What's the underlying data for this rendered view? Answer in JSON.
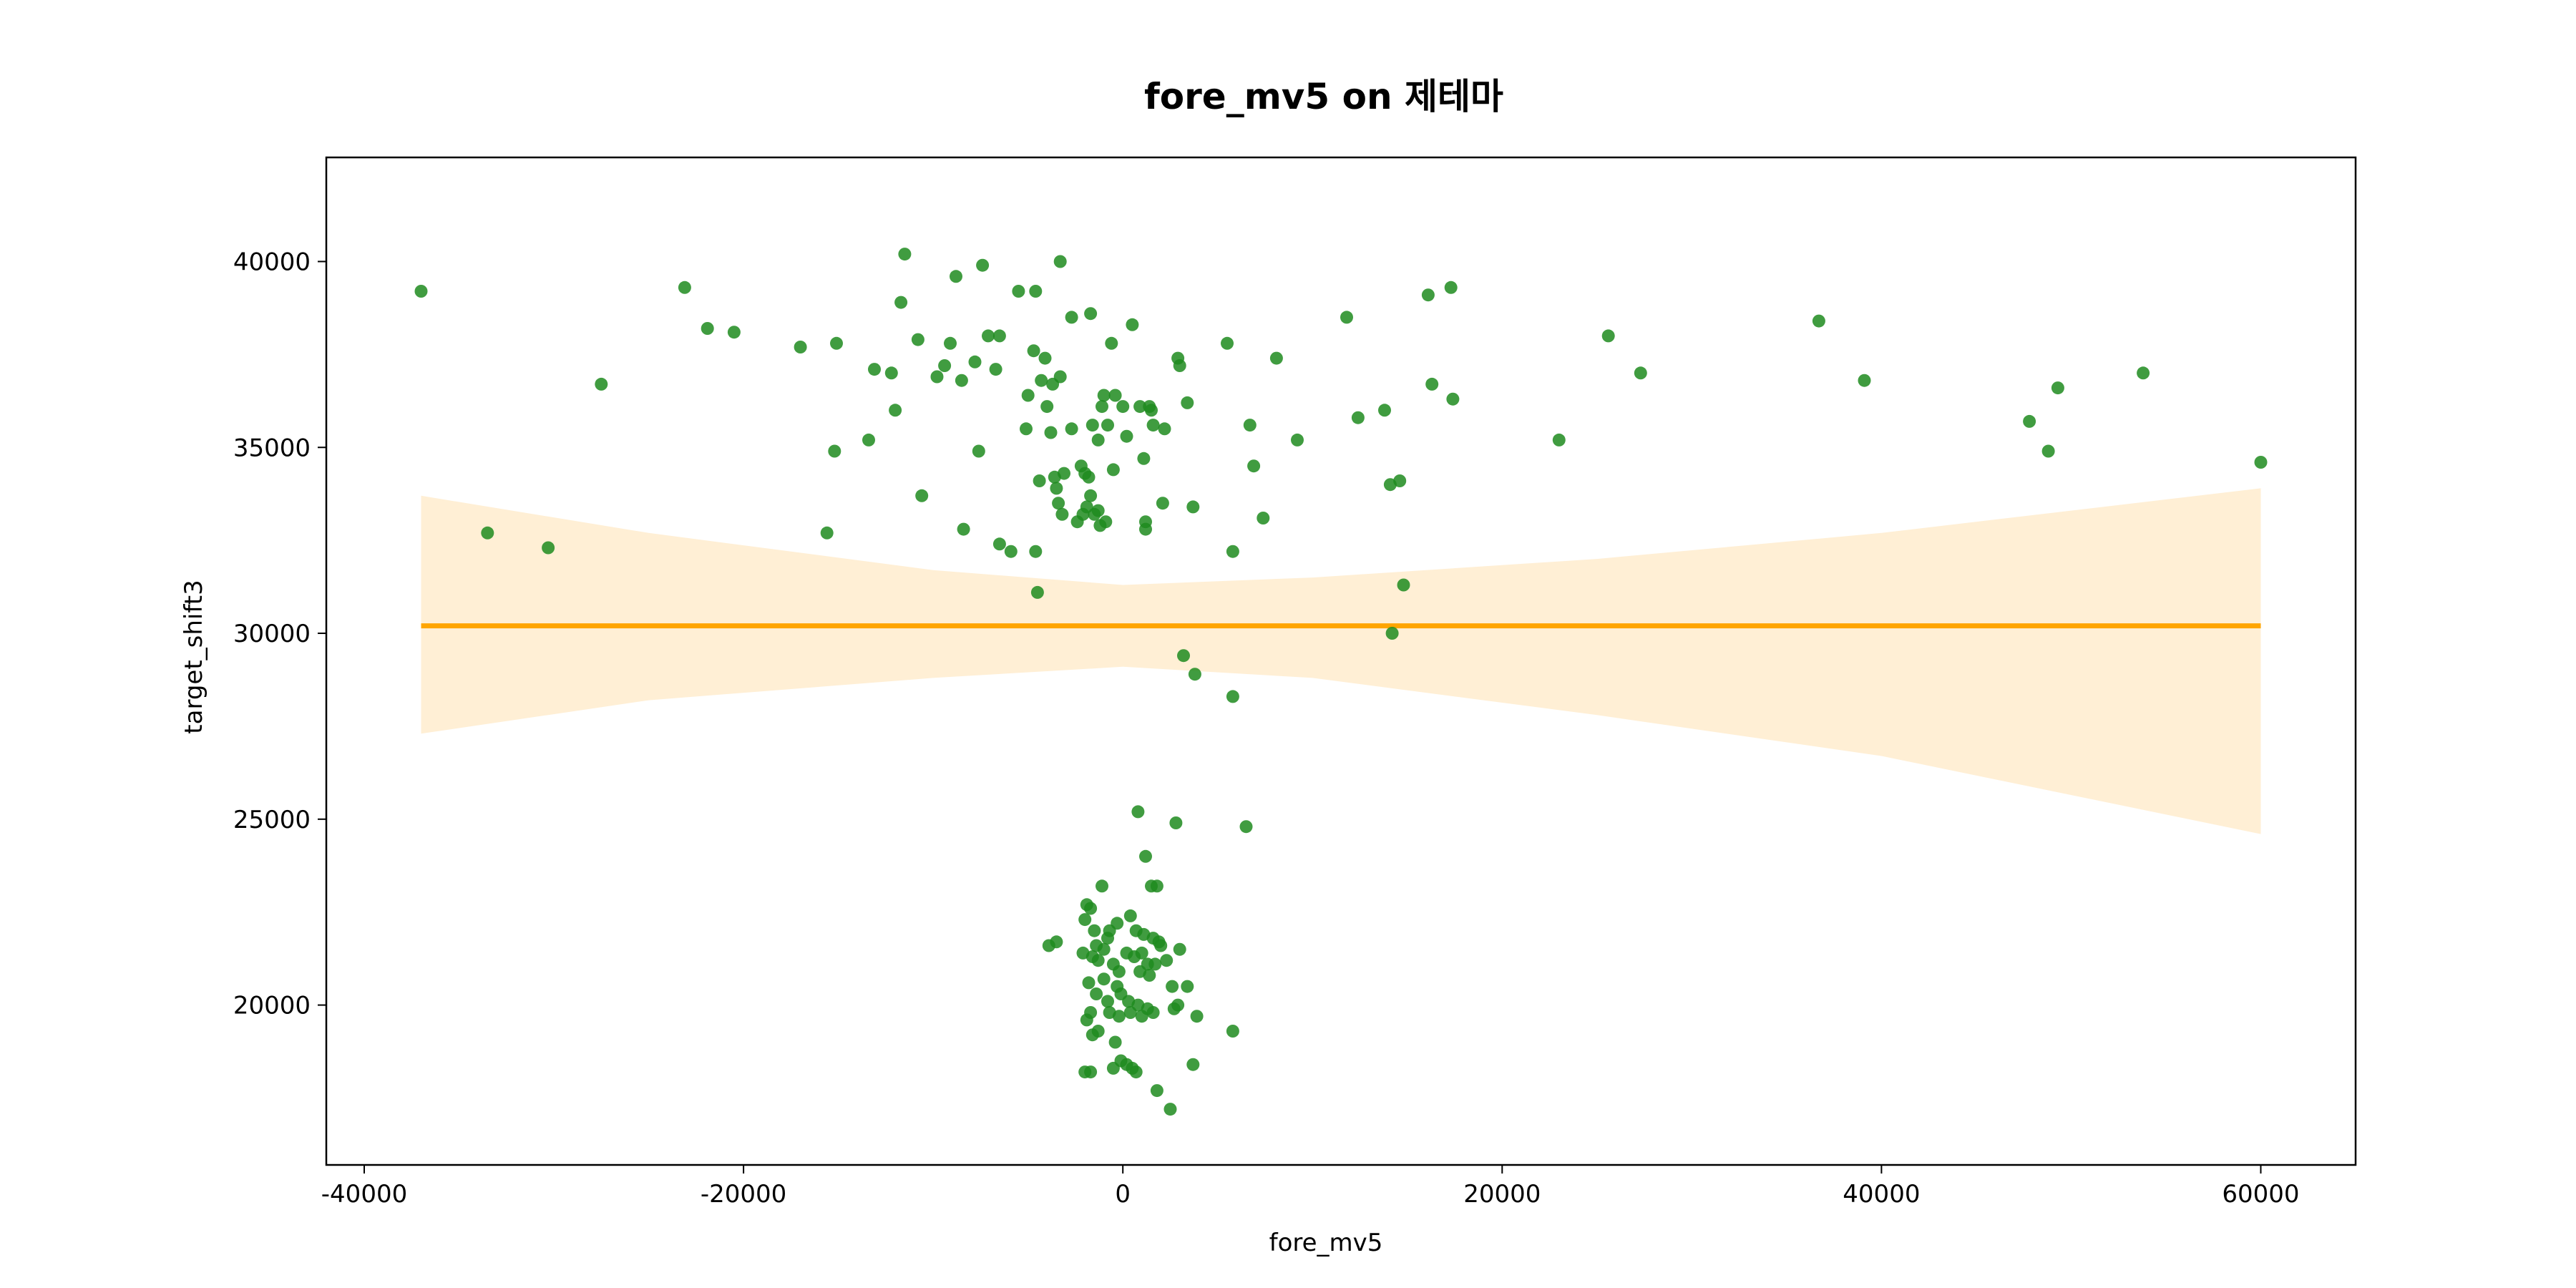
{
  "chart_data": {
    "type": "scatter",
    "title": "fore_mv5 on 제테마",
    "xlabel": "fore_mv5",
    "ylabel": "target_shift3",
    "xlim": [
      -42000,
      65000
    ],
    "ylim": [
      15700,
      42800
    ],
    "x_ticks": [
      -40000,
      -20000,
      0,
      20000,
      40000,
      60000
    ],
    "x_tick_labels": [
      "-40000",
      "-20000",
      "0",
      "20000",
      "40000",
      "60000"
    ],
    "y_ticks": [
      20000,
      25000,
      30000,
      35000,
      40000
    ],
    "y_tick_labels": [
      "20000",
      "25000",
      "30000",
      "35000",
      "40000"
    ],
    "grid": false,
    "colors": {
      "points": "#1f8b1f",
      "regression_line": "#ffa500",
      "confidence_band": "#ffe9c7"
    },
    "regression": {
      "x": [
        -37000,
        -25000,
        -10000,
        0,
        10000,
        25000,
        40000,
        60000
      ],
      "y": [
        30200,
        30200,
        30200,
        30200,
        30200,
        30200,
        30200,
        30200
      ],
      "ci_upper": [
        33700,
        32700,
        31700,
        31300,
        31500,
        32000,
        32700,
        33900
      ],
      "ci_lower": [
        27300,
        28200,
        28800,
        29100,
        28800,
        27800,
        26700,
        24600
      ]
    },
    "points": [
      [
        -37000,
        39200
      ],
      [
        -33500,
        32700
      ],
      [
        -30300,
        32300
      ],
      [
        -27500,
        36700
      ],
      [
        -23100,
        39300
      ],
      [
        -21900,
        38200
      ],
      [
        -20500,
        38100
      ],
      [
        -17000,
        37700
      ],
      [
        -15600,
        32700
      ],
      [
        -15200,
        34900
      ],
      [
        -15100,
        37800
      ],
      [
        -13400,
        35200
      ],
      [
        -13100,
        37100
      ],
      [
        -12200,
        37000
      ],
      [
        -12000,
        36000
      ],
      [
        -11700,
        38900
      ],
      [
        -11500,
        40200
      ],
      [
        -10800,
        37900
      ],
      [
        -10600,
        33700
      ],
      [
        -9800,
        36900
      ],
      [
        -9400,
        37200
      ],
      [
        -9100,
        37800
      ],
      [
        -8800,
        39600
      ],
      [
        -8500,
        36800
      ],
      [
        -8400,
        32800
      ],
      [
        -7800,
        37300
      ],
      [
        -7400,
        39900
      ],
      [
        -7600,
        34900
      ],
      [
        -7100,
        38000
      ],
      [
        -6700,
        37100
      ],
      [
        -6500,
        38000
      ],
      [
        -6500,
        32400
      ],
      [
        -5900,
        32200
      ],
      [
        -5500,
        39200
      ],
      [
        -5100,
        35500
      ],
      [
        -5000,
        36400
      ],
      [
        -4700,
        37600
      ],
      [
        -4600,
        39200
      ],
      [
        -4600,
        32200
      ],
      [
        -4500,
        31100
      ],
      [
        -4400,
        34100
      ],
      [
        -4300,
        36800
      ],
      [
        -4100,
        37400
      ],
      [
        -4000,
        36100
      ],
      [
        -3800,
        35400
      ],
      [
        -3700,
        36700
      ],
      [
        -3600,
        34200
      ],
      [
        -3500,
        33900
      ],
      [
        -3400,
        33500
      ],
      [
        -3300,
        40000
      ],
      [
        -3300,
        36900
      ],
      [
        -3200,
        33200
      ],
      [
        -3100,
        34300
      ],
      [
        -2700,
        38500
      ],
      [
        -2700,
        35500
      ],
      [
        -2400,
        33000
      ],
      [
        -2200,
        34500
      ],
      [
        -2100,
        33200
      ],
      [
        -2000,
        34300
      ],
      [
        -1900,
        33400
      ],
      [
        -1800,
        34200
      ],
      [
        -1700,
        38600
      ],
      [
        -1700,
        33700
      ],
      [
        -1600,
        35600
      ],
      [
        -1500,
        33200
      ],
      [
        -1300,
        35200
      ],
      [
        -1300,
        33300
      ],
      [
        -1200,
        32900
      ],
      [
        -1100,
        36100
      ],
      [
        -1000,
        36400
      ],
      [
        -900,
        33000
      ],
      [
        -800,
        35600
      ],
      [
        -600,
        37800
      ],
      [
        -500,
        34400
      ],
      [
        -400,
        36400
      ],
      [
        0,
        36100
      ],
      [
        200,
        35300
      ],
      [
        500,
        38300
      ],
      [
        900,
        36100
      ],
      [
        1100,
        34700
      ],
      [
        1200,
        33000
      ],
      [
        1200,
        32800
      ],
      [
        1400,
        36100
      ],
      [
        1500,
        36000
      ],
      [
        1600,
        35600
      ],
      [
        2100,
        33500
      ],
      [
        2200,
        35500
      ],
      [
        2900,
        37400
      ],
      [
        3000,
        37200
      ],
      [
        3400,
        36200
      ],
      [
        3700,
        33400
      ],
      [
        5500,
        37800
      ],
      [
        5800,
        32200
      ],
      [
        6700,
        35600
      ],
      [
        6900,
        34500
      ],
      [
        7400,
        33100
      ],
      [
        8100,
        37400
      ],
      [
        9200,
        35200
      ],
      [
        11800,
        38500
      ],
      [
        12400,
        35800
      ],
      [
        13800,
        36000
      ],
      [
        14100,
        34000
      ],
      [
        14600,
        34100
      ],
      [
        14800,
        31300
      ],
      [
        14200,
        30000
      ],
      [
        16100,
        39100
      ],
      [
        16300,
        36700
      ],
      [
        17300,
        39300
      ],
      [
        17400,
        36300
      ],
      [
        23000,
        35200
      ],
      [
        25600,
        38000
      ],
      [
        27300,
        37000
      ],
      [
        36700,
        38400
      ],
      [
        39100,
        36800
      ],
      [
        47800,
        35700
      ],
      [
        48800,
        34900
      ],
      [
        49300,
        36600
      ],
      [
        53800,
        37000
      ],
      [
        60000,
        34600
      ],
      [
        3200,
        29400
      ],
      [
        3800,
        28900
      ],
      [
        5800,
        28300
      ],
      [
        800,
        25200
      ],
      [
        2800,
        24900
      ],
      [
        6500,
        24800
      ],
      [
        1200,
        24000
      ],
      [
        -1100,
        23200
      ],
      [
        1500,
        23200
      ],
      [
        1800,
        23200
      ],
      [
        -1900,
        22700
      ],
      [
        -1700,
        22600
      ],
      [
        -2000,
        22300
      ],
      [
        -300,
        22200
      ],
      [
        400,
        22400
      ],
      [
        700,
        22000
      ],
      [
        -1500,
        22000
      ],
      [
        -700,
        22000
      ],
      [
        1100,
        21900
      ],
      [
        1600,
        21800
      ],
      [
        1900,
        21700
      ],
      [
        -3900,
        21600
      ],
      [
        -3500,
        21700
      ],
      [
        -1400,
        21600
      ],
      [
        -1000,
        21500
      ],
      [
        -800,
        21800
      ],
      [
        200,
        21400
      ],
      [
        600,
        21300
      ],
      [
        1000,
        21400
      ],
      [
        1300,
        21100
      ],
      [
        2000,
        21600
      ],
      [
        2300,
        21200
      ],
      [
        3000,
        21500
      ],
      [
        -2100,
        21400
      ],
      [
        -1600,
        21300
      ],
      [
        -1300,
        21200
      ],
      [
        -500,
        21100
      ],
      [
        -200,
        20900
      ],
      [
        900,
        20900
      ],
      [
        1400,
        20800
      ],
      [
        1700,
        21100
      ],
      [
        -1800,
        20600
      ],
      [
        -1000,
        20700
      ],
      [
        -300,
        20500
      ],
      [
        -100,
        20300
      ],
      [
        300,
        20100
      ],
      [
        800,
        20000
      ],
      [
        1300,
        19900
      ],
      [
        2600,
        20500
      ],
      [
        3400,
        20500
      ],
      [
        -1400,
        20300
      ],
      [
        -800,
        20100
      ],
      [
        -1700,
        19800
      ],
      [
        -1900,
        19600
      ],
      [
        -700,
        19800
      ],
      [
        -200,
        19700
      ],
      [
        400,
        19800
      ],
      [
        1000,
        19700
      ],
      [
        1600,
        19800
      ],
      [
        2700,
        19900
      ],
      [
        2900,
        20000
      ],
      [
        3900,
        19700
      ],
      [
        -1300,
        19300
      ],
      [
        -1600,
        19200
      ],
      [
        -400,
        19000
      ],
      [
        5800,
        19300
      ],
      [
        -2000,
        18200
      ],
      [
        -1700,
        18200
      ],
      [
        -500,
        18300
      ],
      [
        -100,
        18500
      ],
      [
        200,
        18400
      ],
      [
        500,
        18300
      ],
      [
        700,
        18200
      ],
      [
        3700,
        18400
      ],
      [
        1800,
        17700
      ],
      [
        2500,
        17200
      ]
    ]
  }
}
